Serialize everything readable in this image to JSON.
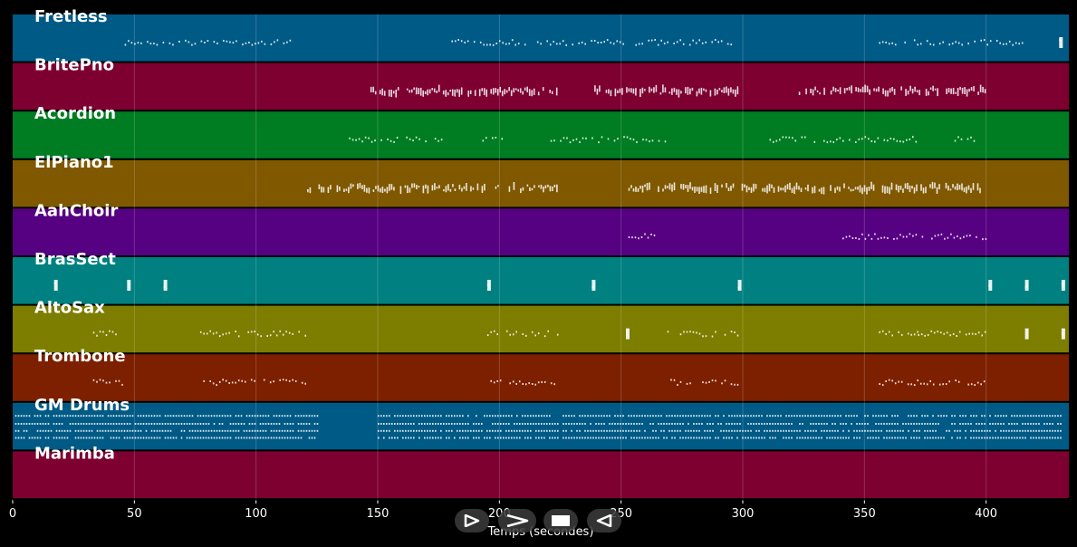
{
  "axis": {
    "xlabel": "Temps (secondes)",
    "xmin": 0,
    "xmax": 434,
    "ticks": [
      0,
      50,
      100,
      150,
      200,
      250,
      300,
      350,
      400
    ]
  },
  "tracks": [
    {
      "name": "Fretless",
      "color": "#005a86",
      "segments": [
        [
          46,
          120
        ],
        [
          179,
          298
        ],
        [
          356,
          415
        ],
        [
          430,
          431
        ]
      ],
      "density": 0.25
    },
    {
      "name": "BritePno",
      "color": "#7d0030",
      "segments": [
        [
          147,
          224
        ],
        [
          239,
          298
        ],
        [
          323,
          400
        ]
      ],
      "density": 0.65
    },
    {
      "name": "Acordion",
      "color": "#007d22",
      "segments": [
        [
          133,
          176
        ],
        [
          193,
          203
        ],
        [
          221,
          269
        ],
        [
          311,
          372
        ],
        [
          387,
          396
        ]
      ],
      "density": 0.3
    },
    {
      "name": "ElPiano1",
      "color": "#7f5800",
      "segments": [
        [
          121,
          224
        ],
        [
          253,
          400
        ]
      ],
      "density": 0.6
    },
    {
      "name": "AahChoir",
      "color": "#560082",
      "segments": [
        [
          253,
          267
        ],
        [
          341,
          400
        ]
      ],
      "density": 0.3
    },
    {
      "name": "BrasSect",
      "color": "#008080",
      "segments": [
        [
          17,
          18
        ],
        [
          47,
          48
        ],
        [
          62,
          63
        ],
        [
          195,
          196
        ],
        [
          238,
          239
        ],
        [
          298,
          299
        ],
        [
          401,
          402
        ],
        [
          416,
          417
        ],
        [
          431,
          432
        ]
      ],
      "density": 0.5
    },
    {
      "name": "AltoSax",
      "color": "#7d7d00",
      "segments": [
        [
          33,
          46
        ],
        [
          77,
          120
        ],
        [
          195,
          224
        ],
        [
          252,
          253
        ],
        [
          269,
          298
        ],
        [
          356,
          372
        ],
        [
          372,
          400
        ],
        [
          416,
          417
        ],
        [
          431,
          432
        ]
      ],
      "density": 0.35
    },
    {
      "name": "Trombone",
      "color": "#7d2000",
      "segments": [
        [
          33,
          46
        ],
        [
          77,
          120
        ],
        [
          195,
          224
        ],
        [
          269,
          298
        ],
        [
          356,
          400
        ]
      ],
      "density": 0.35
    },
    {
      "name": "GM Drums",
      "color": "#005a86",
      "segments": [
        [
          1,
          125
        ],
        [
          150,
          224
        ],
        [
          226,
          431
        ]
      ],
      "density": 0.85
    },
    {
      "name": "Marimba",
      "color": "#7d0030",
      "segments": [],
      "density": 0
    }
  ],
  "controls": [
    {
      "name": "play-button",
      "glyph": "play-icon"
    },
    {
      "name": "fast-forward-button",
      "glyph": "fast-forward-icon"
    },
    {
      "name": "stop-button",
      "glyph": "stop-icon"
    },
    {
      "name": "rewind-button",
      "glyph": "rewind-icon"
    }
  ]
}
